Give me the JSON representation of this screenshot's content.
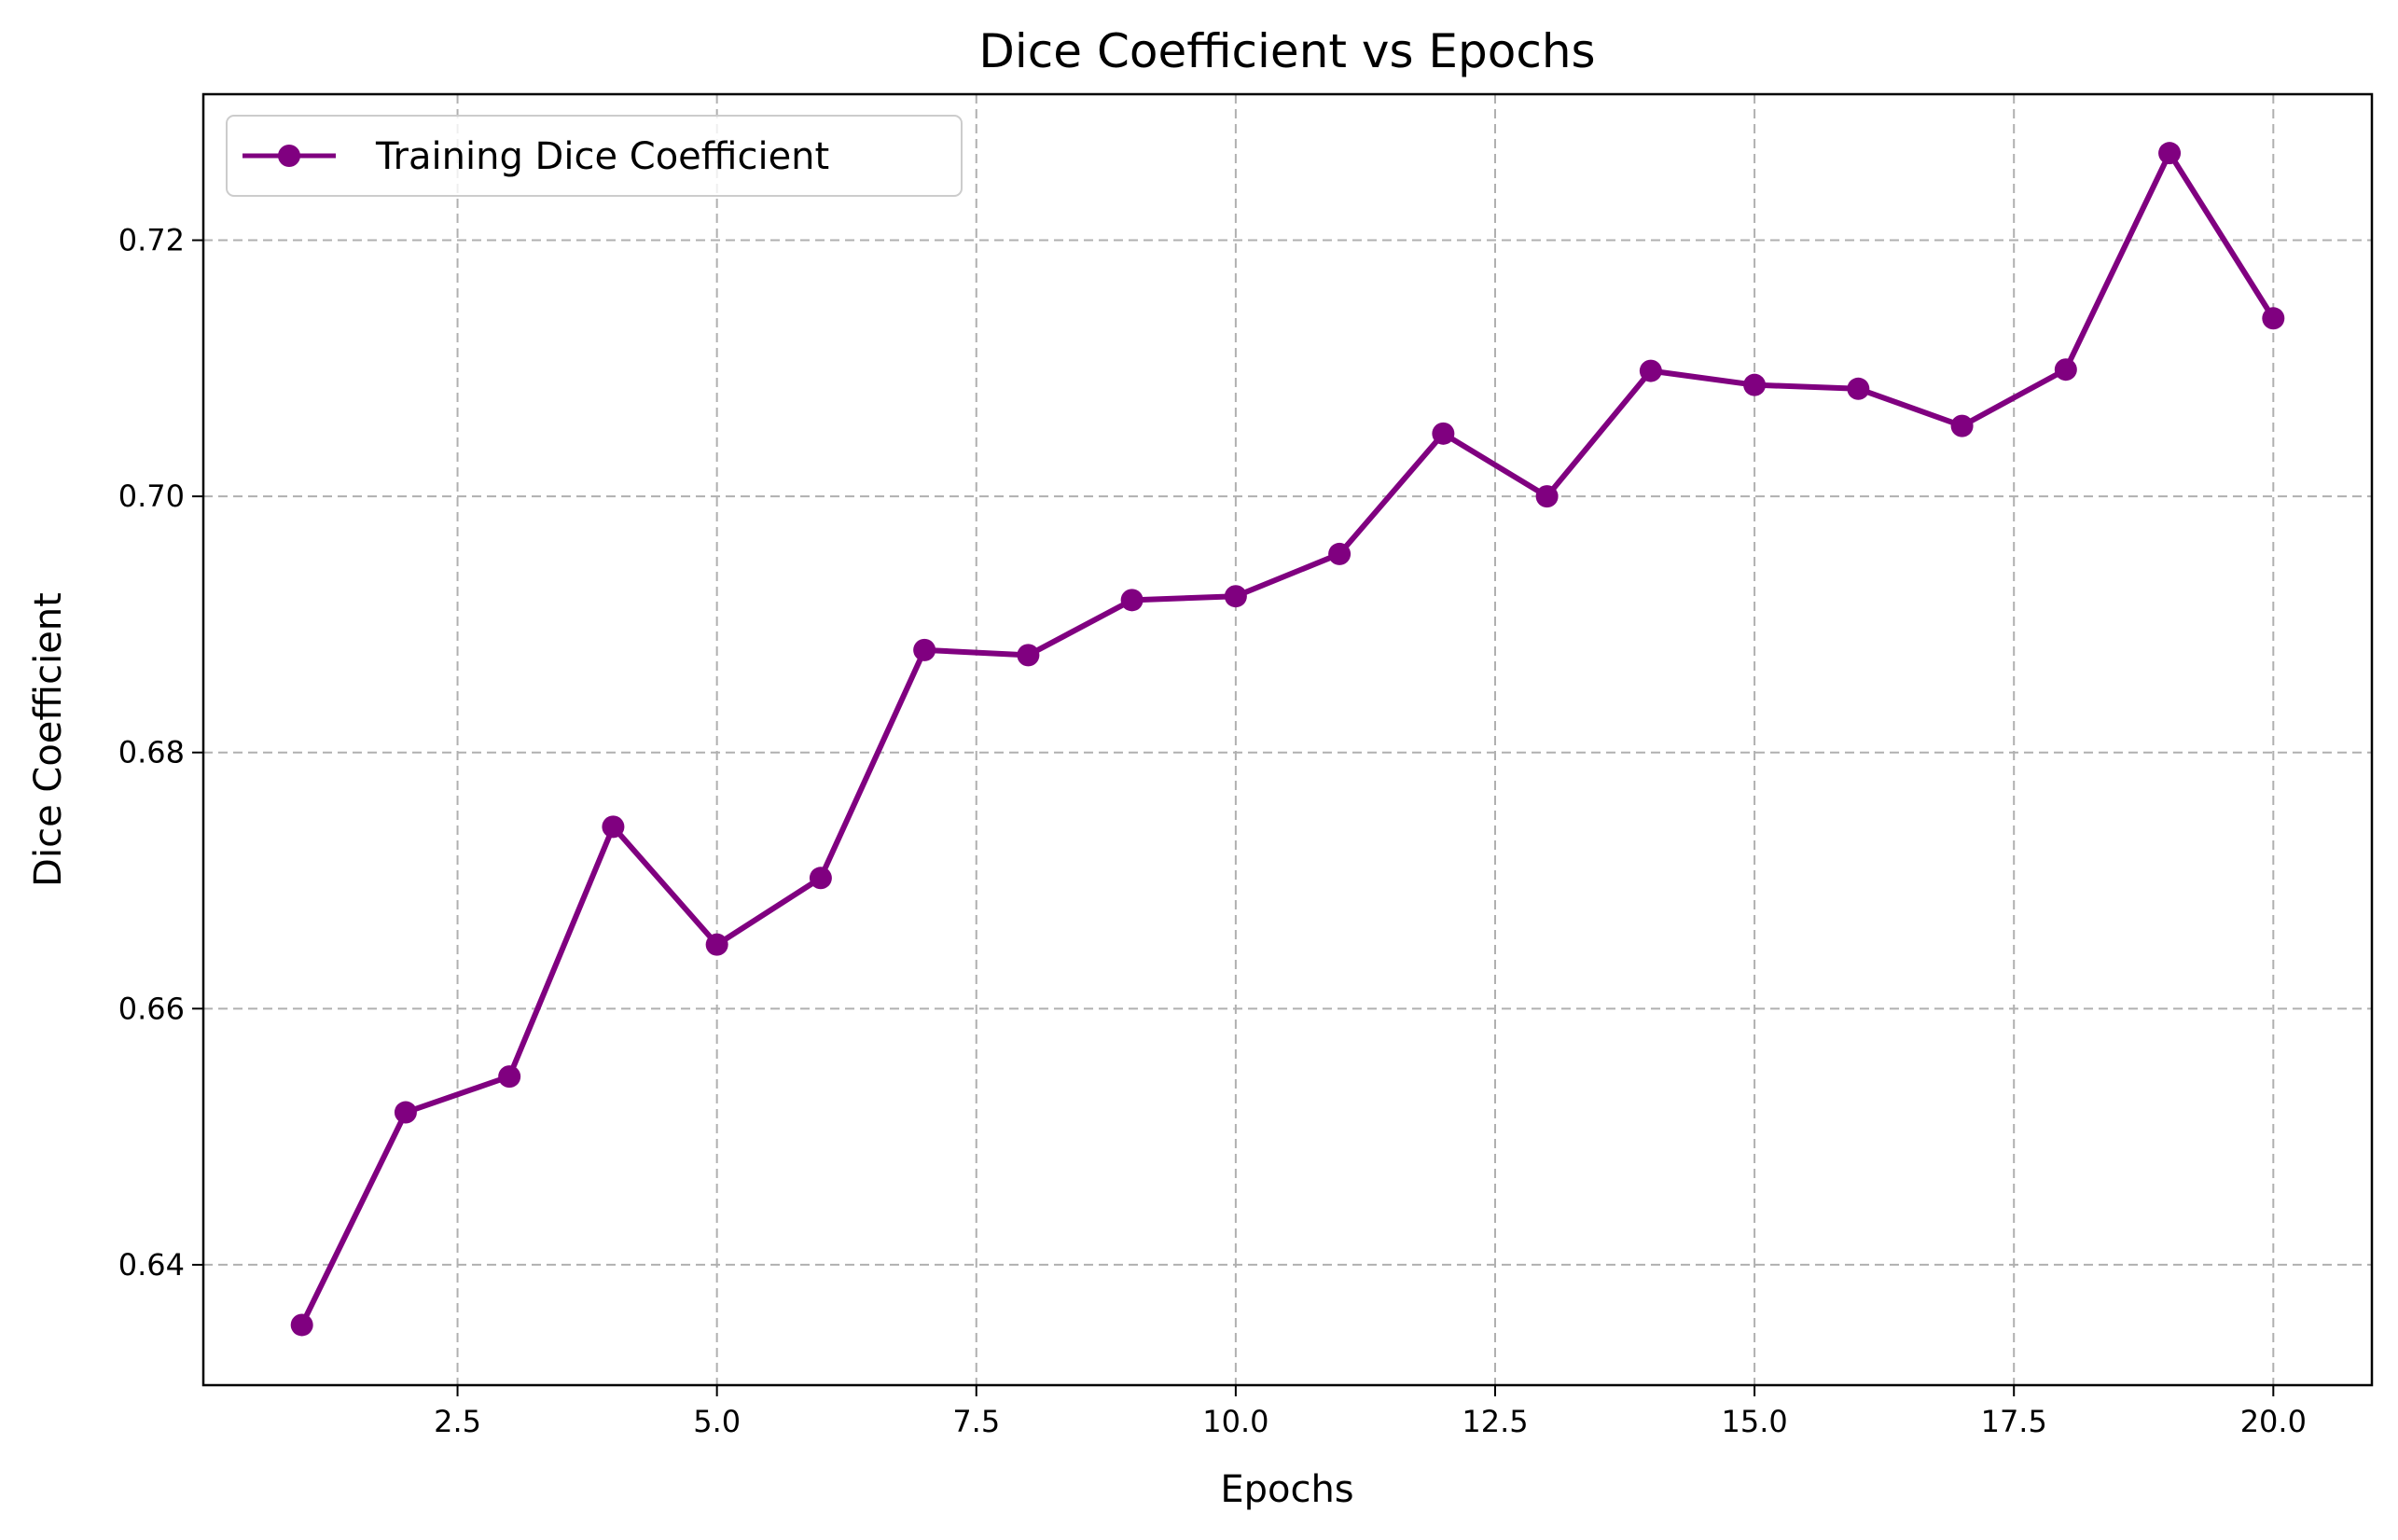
{
  "chart_data": {
    "type": "line",
    "title": "Dice Coefficient vs Epochs",
    "xlabel": "Epochs",
    "ylabel": "Dice Coefficient",
    "xlim": [
      0.05,
      20.95
    ],
    "ylim": [
      0.6306,
      0.7314
    ],
    "xticks": [
      2.5,
      5.0,
      7.5,
      10.0,
      12.5,
      15.0,
      17.5,
      20.0
    ],
    "xtick_labels": [
      "2.5",
      "5.0",
      "7.5",
      "10.0",
      "12.5",
      "15.0",
      "17.5",
      "20.0"
    ],
    "yticks": [
      0.64,
      0.66,
      0.68,
      0.7,
      0.72
    ],
    "ytick_labels": [
      "0.64",
      "0.66",
      "0.68",
      "0.70",
      "0.72"
    ],
    "grid": true,
    "legend_position": "top-left",
    "series": [
      {
        "name": "Training Dice Coefficient",
        "color": "#800080",
        "marker": "circle",
        "x": [
          1,
          2,
          3,
          4,
          5,
          6,
          7,
          8,
          9,
          10,
          11,
          12,
          13,
          14,
          15,
          16,
          17,
          18,
          19,
          20
        ],
        "y": [
          0.6353,
          0.6519,
          0.6547,
          0.6742,
          0.665,
          0.6702,
          0.688,
          0.6876,
          0.6919,
          0.6922,
          0.6955,
          0.7049,
          0.7,
          0.7098,
          0.7087,
          0.7084,
          0.7055,
          0.7099,
          0.7268,
          0.7139
        ]
      }
    ]
  }
}
